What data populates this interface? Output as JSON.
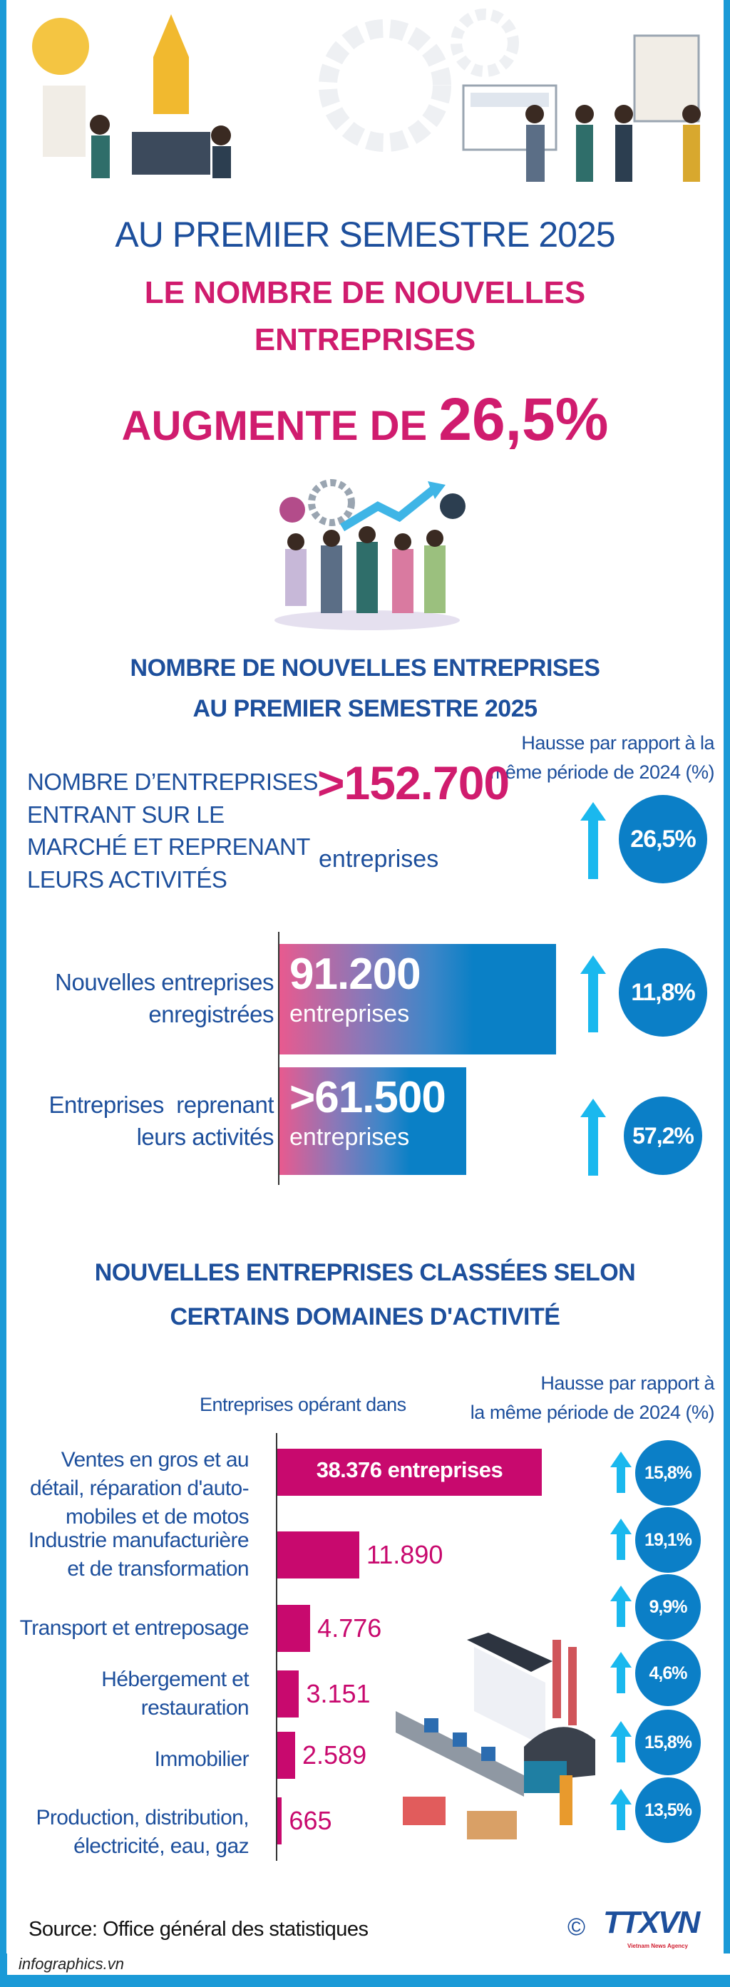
{
  "header": {
    "line1": "AU PREMIER SEMESTRE 2025",
    "line2": "LE NOMBRE DE NOUVELLES",
    "line3": "ENTREPRISES",
    "line4_prefix": "AUGMENTE DE ",
    "line4_value": "26,5%"
  },
  "section1": {
    "title_line1": "NOMBRE DE NOUVELLES ENTREPRISES",
    "title_line2": "AU PREMIER SEMESTRE 2025",
    "hausse_line1": "Hausse par rapport à la",
    "hausse_line2": "même période de 2024 (%)",
    "total": {
      "label_lines": [
        "NOMBRE D’ENTREPRISES",
        "ENTRANT SUR LE",
        "MARCHÉ ET REPRENANT",
        "LEURS ACTIVITÉS"
      ],
      "value": ">152.700",
      "unit": "entreprises",
      "growth": "26,5%"
    },
    "rows": [
      {
        "label_lines": [
          "Nouvelles entreprises",
          "enregistrées"
        ],
        "value_text": "91.200",
        "unit": "entreprises",
        "growth": "11,8%"
      },
      {
        "label_lines": [
          "Entreprises  reprenant",
          "leurs activités"
        ],
        "value_text": ">61.500",
        "unit": "entreprises",
        "growth": "57,2%"
      }
    ]
  },
  "section2": {
    "title_line1": "NOUVELLES ENTREPRISES  CLASSÉES SELON",
    "title_line2": "CERTAINS DOMAINES D'ACTIVITÉ",
    "column_label": "Entreprises opérant dans",
    "hausse_line1": "Hausse par rapport à",
    "hausse_line2": "la même période de 2024 (%)",
    "rows": [
      {
        "label_lines": [
          "Ventes en gros et au",
          "détail, réparation d'auto-",
          "mobiles et de motos"
        ],
        "value_text": "38.376 entreprises",
        "growth": "15,8%"
      },
      {
        "label_lines": [
          "Industrie manufacturière",
          "et de transformation"
        ],
        "value_text": "11.890",
        "growth": "19,1%"
      },
      {
        "label_lines": [
          "Transport et entreposage"
        ],
        "value_text": "4.776",
        "growth": "9,9%"
      },
      {
        "label_lines": [
          "Hébergement et",
          "restauration"
        ],
        "value_text": "3.151",
        "growth": "4,6%"
      },
      {
        "label_lines": [
          "Immobilier"
        ],
        "value_text": "2.589",
        "growth": "15,8%"
      },
      {
        "label_lines": [
          "Production, distribution,",
          "électricité, eau, gaz"
        ],
        "value_text": "665",
        "growth": "13,5%"
      }
    ]
  },
  "footer": {
    "source": "Source: Office général des statistiques",
    "site": "infographics.vn",
    "copyright": "©",
    "logo": "TTXVN",
    "logo_sub": "Vietnam News Agency"
  },
  "colors": {
    "brand_blue": "#1d4f9c",
    "accent_pink": "#d01c6e",
    "bar_magenta": "#c8096e",
    "circle_blue": "#0b7fc7",
    "arrow_cyan": "#1ab8ee",
    "frame_blue": "#1b9ad7"
  },
  "icons": {
    "growth": "arrow-up-icon"
  },
  "chart_data": [
    {
      "type": "bar",
      "orientation": "horizontal",
      "categories": [
        "Nouvelles entreprises enregistrées",
        "Entreprises reprenant leurs activités"
      ],
      "values": [
        91200,
        61500
      ],
      "unit": "entreprises",
      "growth_pct": [
        11.8,
        57.2
      ]
    },
    {
      "type": "bar",
      "orientation": "horizontal",
      "categories": [
        "Ventes en gros et au détail, réparation d'automobiles et de motos",
        "Industrie manufacturière et de transformation",
        "Transport et entreposage",
        "Hébergement et restauration",
        "Immobilier",
        "Production, distribution, électricité, eau, gaz"
      ],
      "values": [
        38376,
        11890,
        4776,
        3151,
        2589,
        665
      ],
      "growth_pct": [
        15.8,
        19.1,
        9.9,
        4.6,
        15.8,
        13.5
      ]
    }
  ]
}
